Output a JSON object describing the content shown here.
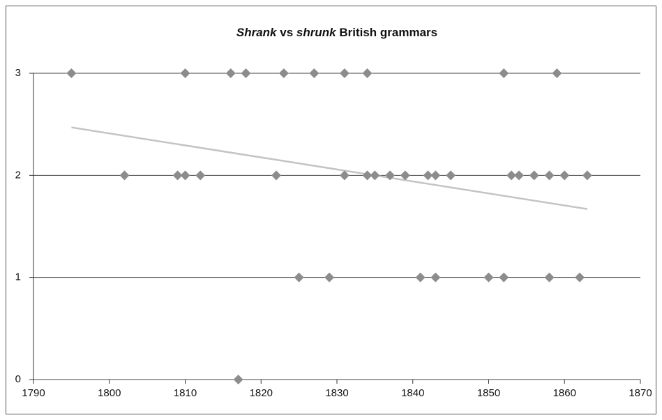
{
  "chart_data": {
    "type": "scatter",
    "title": [
      "Shrank",
      "vs",
      "shrunk",
      "British grammars"
    ],
    "title_italic": [
      true,
      false,
      true,
      false
    ],
    "x": [
      1795,
      1810,
      1816,
      1818,
      1823,
      1827,
      1831,
      1834,
      1852,
      1859,
      1802,
      1809,
      1810,
      1812,
      1822,
      1831,
      1834,
      1835,
      1837,
      1839,
      1842,
      1843,
      1845,
      1853,
      1854,
      1856,
      1858,
      1860,
      1863,
      1825,
      1829,
      1841,
      1843,
      1850,
      1852,
      1858,
      1862,
      1817
    ],
    "values": [
      3,
      3,
      3,
      3,
      3,
      3,
      3,
      3,
      3,
      3,
      2,
      2,
      2,
      2,
      2,
      2,
      2,
      2,
      2,
      2,
      2,
      2,
      2,
      2,
      2,
      2,
      2,
      2,
      2,
      1,
      1,
      1,
      1,
      1,
      1,
      1,
      1,
      0
    ],
    "color": "#8c8c8c",
    "trendline": {
      "x": [
        1795,
        1863
      ],
      "values": [
        2.47,
        1.67
      ],
      "color": "#c4c4c4"
    },
    "xlim": [
      1790,
      1870
    ],
    "xticks": [
      1790,
      1800,
      1810,
      1820,
      1830,
      1840,
      1850,
      1860,
      1870
    ],
    "ylim": [
      0,
      3
    ],
    "yticks": [
      0,
      1,
      2,
      3
    ],
    "grid": true
  }
}
